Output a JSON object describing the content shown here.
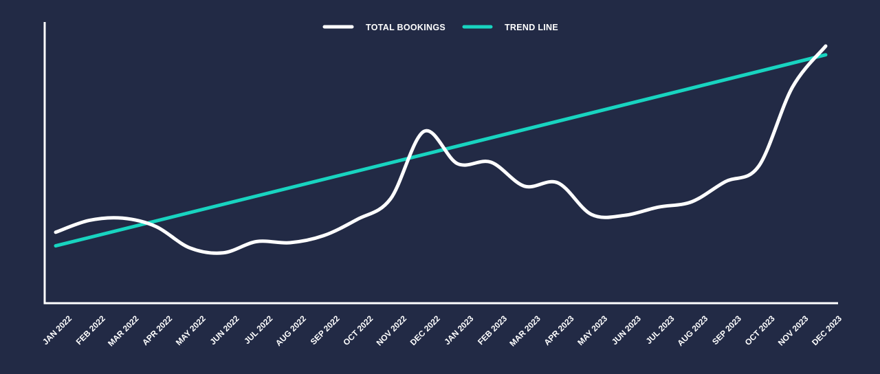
{
  "chart_data": {
    "type": "line",
    "title": "",
    "xlabel": "",
    "ylabel": "",
    "ylim": [
      0,
      100
    ],
    "grid": false,
    "legend": "top-center",
    "categories": [
      "JAN 2022",
      "FEB 2022",
      "MAR 2022",
      "APR 2022",
      "MAY 2022",
      "JUN 2022",
      "JUL 2022",
      "AUG 2022",
      "SEP 2022",
      "OCT 2022",
      "NOV 2022",
      "DEC 2022",
      "JAN 2023",
      "FEB 2023",
      "MAR 2023",
      "APR 2023",
      "MAY 2023",
      "JUN 2023",
      "JUL 2023",
      "AUG 2023",
      "SEP 2023",
      "OCT 2023",
      "NOV 2023",
      "DEC 2023"
    ],
    "series": [
      {
        "name": "TOTAL BOOKINGS",
        "color": "#ffffff",
        "values": [
          25.1,
          29.3,
          30.1,
          27.1,
          19.6,
          17.8,
          21.8,
          21.4,
          23.9,
          29.6,
          36.9,
          60.8,
          49.4,
          49.9,
          41.4,
          42.6,
          31.4,
          31.1,
          34.0,
          35.9,
          43.0,
          48.5,
          76.3,
          91.0
        ]
      },
      {
        "name": "TREND LINE",
        "color": "#18d4c0",
        "values": [
          20.3,
          23.3,
          26.2,
          29.1,
          32.1,
          35.0,
          38.0,
          40.9,
          43.8,
          46.8,
          49.7,
          52.6,
          55.6,
          58.5,
          61.5,
          64.4,
          67.3,
          70.3,
          73.2,
          76.1,
          79.1,
          82.0,
          85.0,
          87.9
        ]
      }
    ]
  }
}
